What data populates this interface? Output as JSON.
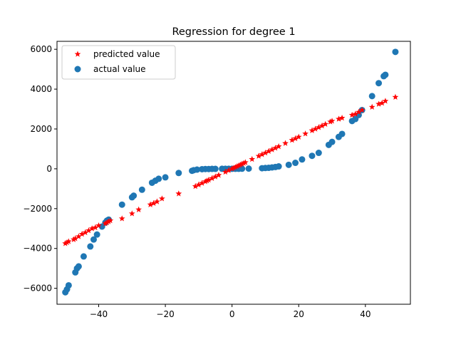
{
  "chart_data": {
    "type": "scatter",
    "title": "Regression for degree 1",
    "xlabel": "",
    "ylabel": "",
    "xlim": [
      -52.5,
      53.5
    ],
    "ylim": [
      -6800,
      6400
    ],
    "xticks": [
      -40,
      -20,
      0,
      20,
      40
    ],
    "yticks": [
      -6000,
      -4000,
      -2000,
      0,
      2000,
      4000,
      6000
    ],
    "grid": false,
    "legend_position": "top-left",
    "series": [
      {
        "name": "predicted value",
        "marker": "star",
        "color": "#ff0000",
        "x": [
          -50,
          -49.5,
          -49,
          -47.5,
          -47,
          -46,
          -45,
          -44,
          -43,
          -42,
          -41,
          -40,
          -38,
          -37.5,
          -37,
          -36.5,
          -33,
          -30,
          -28,
          -24.5,
          -23.5,
          -22.5,
          -21,
          -16,
          -11,
          -10,
          -9,
          -8,
          -7.5,
          -7,
          -6,
          -5,
          -4,
          -2,
          -1,
          0,
          0.5,
          1,
          1.5,
          2,
          2.5,
          3,
          3.5,
          4,
          6,
          8,
          9,
          10,
          11,
          12,
          13,
          14,
          16,
          18,
          19,
          20,
          22,
          24,
          25,
          26,
          27,
          28,
          29.5,
          30,
          32,
          33,
          36,
          37,
          38,
          39,
          42,
          44,
          45,
          46,
          49
        ],
        "y": [
          -3750,
          -3700,
          -3650,
          -3550,
          -3500,
          -3400,
          -3280,
          -3200,
          -3100,
          -3000,
          -2950,
          -2850,
          -2750,
          -2700,
          -2650,
          -2600,
          -2500,
          -2250,
          -2050,
          -1800,
          -1730,
          -1650,
          -1500,
          -1250,
          -880,
          -800,
          -720,
          -640,
          -600,
          -560,
          -480,
          -400,
          -320,
          -160,
          -80,
          0,
          40,
          80,
          120,
          160,
          200,
          240,
          280,
          320,
          480,
          640,
          720,
          800,
          880,
          960,
          1040,
          1120,
          1280,
          1440,
          1520,
          1600,
          1760,
          1920,
          2000,
          2080,
          2160,
          2240,
          2360,
          2400,
          2500,
          2550,
          2700,
          2750,
          2850,
          2950,
          3100,
          3250,
          3300,
          3400,
          3600
        ]
      },
      {
        "name": "actual value",
        "marker": "circle",
        "color": "#1f77b4",
        "x": [
          -50,
          -49.5,
          -49,
          -47,
          -46.5,
          -46,
          -44.5,
          -42.5,
          -41.5,
          -40.5,
          -39,
          -38,
          -37.5,
          -37,
          -33,
          -30,
          -29.5,
          -27,
          -24,
          -23,
          -22,
          -20,
          -16,
          -12,
          -11.5,
          -10.5,
          -9,
          -8,
          -7,
          -6,
          -5,
          -3,
          -2,
          -1,
          0,
          1,
          2,
          3,
          5,
          9,
          10,
          11,
          12,
          13,
          14,
          17,
          19,
          21,
          24,
          26,
          29,
          30,
          32,
          33,
          36,
          37,
          38,
          39,
          42,
          44,
          45.5,
          46,
          49
        ],
        "y": [
          -6200,
          -6050,
          -5850,
          -5200,
          -5000,
          -4900,
          -4400,
          -3900,
          -3550,
          -3300,
          -2900,
          -2700,
          -2600,
          -2550,
          -1800,
          -1430,
          -1350,
          -1050,
          -700,
          -600,
          -500,
          -430,
          -210,
          -100,
          -70,
          -40,
          -20,
          -10,
          -10,
          -5,
          -5,
          -1,
          0,
          0,
          0,
          0,
          0,
          5,
          10,
          30,
          40,
          50,
          70,
          90,
          120,
          200,
          300,
          470,
          650,
          800,
          1200,
          1350,
          1600,
          1750,
          2400,
          2500,
          2700,
          2950,
          3650,
          4300,
          4650,
          4720,
          5870
        ]
      }
    ]
  }
}
